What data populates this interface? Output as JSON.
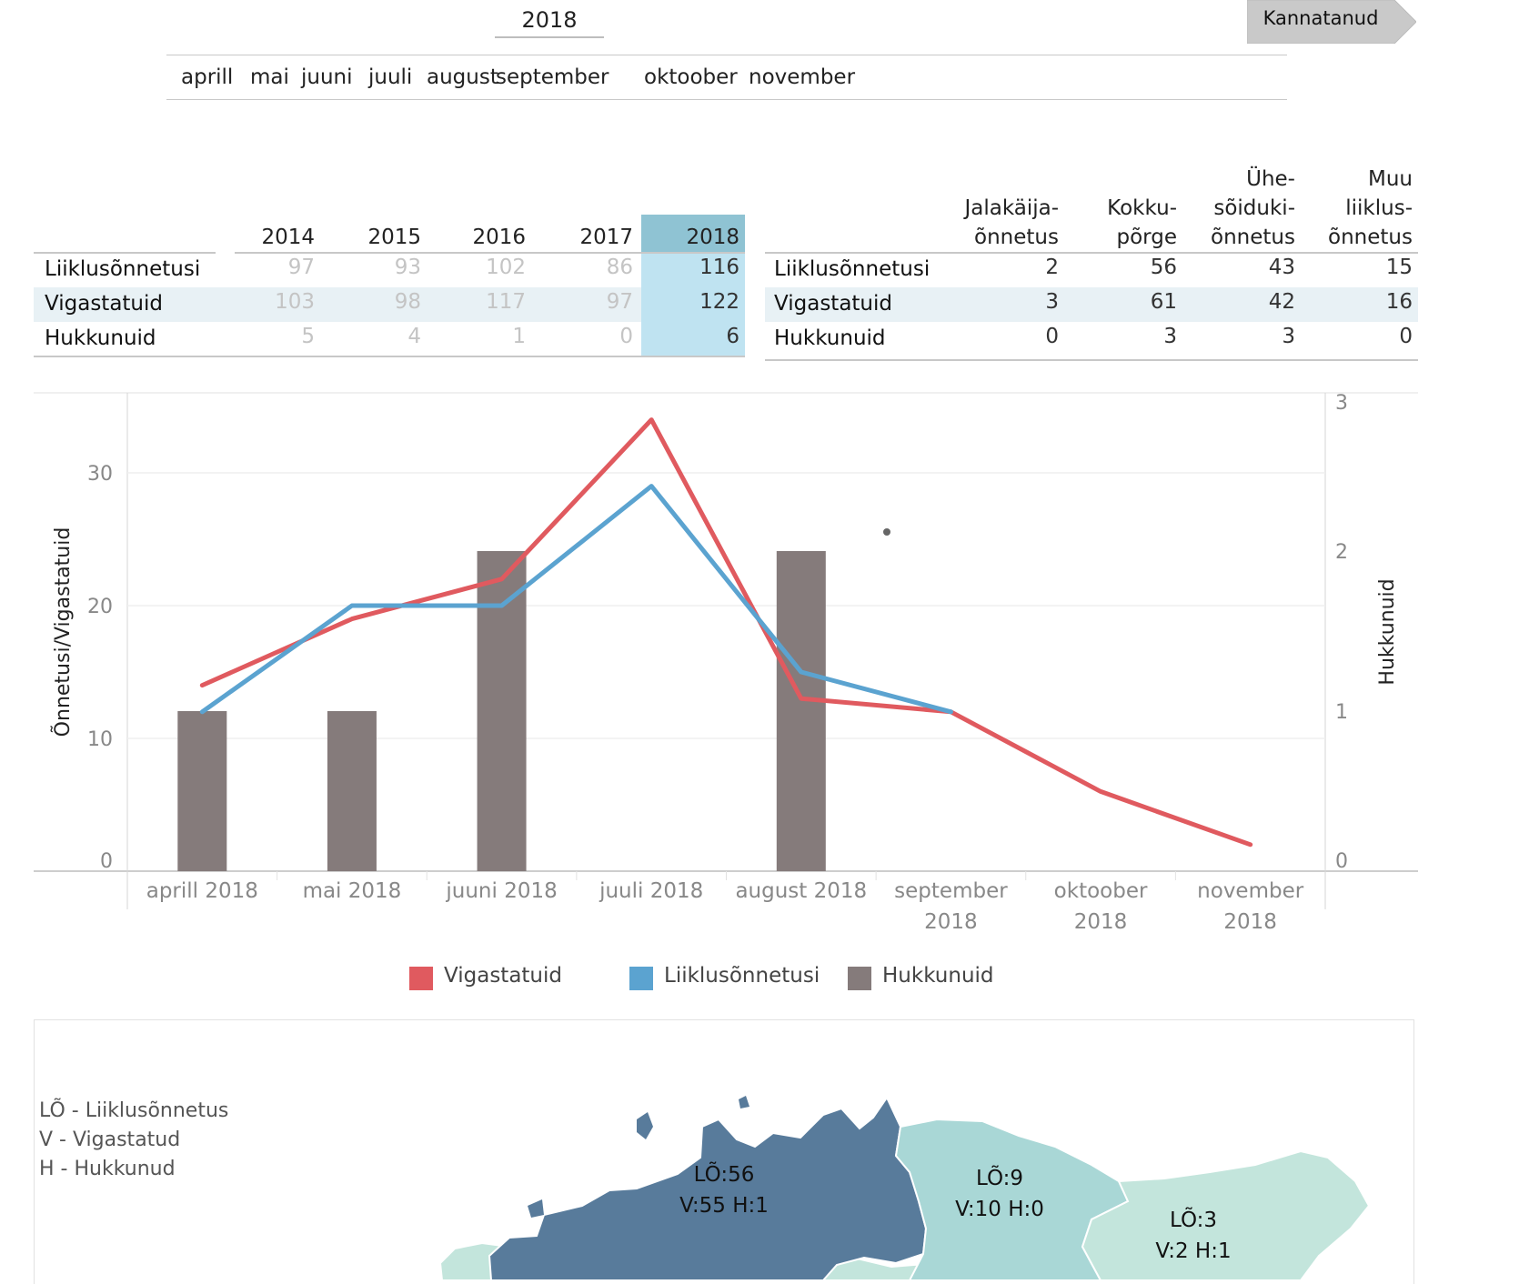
{
  "header": {
    "year": "2018",
    "kannatanud_button": "Kannatanud",
    "months": [
      "aprill",
      "mai",
      "juuni",
      "juuli",
      "august",
      "september",
      "oktoober",
      "november"
    ]
  },
  "year_table": {
    "columns": [
      "2014",
      "2015",
      "2016",
      "2017",
      "2018"
    ],
    "highlight_column": "2018",
    "rows": [
      {
        "label": "Liiklusõnnetusi",
        "values": [
          "97",
          "93",
          "102",
          "86",
          "116"
        ]
      },
      {
        "label": "Vigastatuid",
        "values": [
          "103",
          "98",
          "117",
          "97",
          "122"
        ]
      },
      {
        "label": "Hukkunuid",
        "values": [
          "5",
          "4",
          "1",
          "0",
          "6"
        ]
      }
    ]
  },
  "type_table": {
    "columns": [
      [
        "Jalakäija-",
        "õnnetus"
      ],
      [
        "Kokku-",
        "põrge"
      ],
      [
        "Ühe-",
        "sõiduki-",
        "õnnetus"
      ],
      [
        "Muu",
        "liiklus-",
        "õnnetus"
      ]
    ],
    "rows": [
      {
        "label": "Liiklusõnnetusi",
        "values": [
          "2",
          "56",
          "43",
          "15"
        ]
      },
      {
        "label": "Vigastatuid",
        "values": [
          "3",
          "61",
          "42",
          "16"
        ]
      },
      {
        "label": "Hukkunuid",
        "values": [
          "0",
          "3",
          "3",
          "0"
        ]
      }
    ]
  },
  "chart_data": {
    "type": "line",
    "categories": [
      [
        "aprill 2018"
      ],
      [
        "mai 2018"
      ],
      [
        "juuni 2018"
      ],
      [
        "juuli 2018"
      ],
      [
        "august 2018"
      ],
      [
        "september",
        "2018"
      ],
      [
        "oktoober",
        "2018"
      ],
      [
        "november",
        "2018"
      ]
    ],
    "series": [
      {
        "name": "Vigastatuid",
        "type": "line",
        "axis": "left",
        "color": "#e05a5f",
        "values": [
          14,
          19,
          22,
          34,
          13,
          12,
          6,
          2
        ]
      },
      {
        "name": "Liiklusõnnetusi",
        "type": "line",
        "axis": "left",
        "color": "#5ba3d0",
        "values": [
          12,
          20,
          20,
          29,
          15,
          12,
          null,
          null
        ]
      },
      {
        "name": "Hukkunuid",
        "type": "bar",
        "axis": "right",
        "color": "#857b7b",
        "values": [
          1,
          1,
          2,
          0,
          2,
          0,
          0,
          0
        ]
      }
    ],
    "ylabel": "Õnnetusi/Vigastatuid",
    "y2label": "Hukkunuid",
    "ylim": [
      0,
      36
    ],
    "y2lim": [
      0,
      3
    ],
    "yticks": [
      "0",
      "10",
      "20",
      "30"
    ],
    "y2ticks": [
      "0",
      "1",
      "2",
      "3"
    ],
    "grid": true,
    "legend": {
      "position": "bottom",
      "items": [
        "Vigastatuid",
        "Liiklusõnnetusi",
        "Hukkunuid"
      ]
    }
  },
  "map": {
    "legend": [
      "LÕ - Liiklusõnnetus",
      "V - Vigastatud",
      "H - Hukkunud"
    ],
    "regions": [
      {
        "line1": "LÕ:56",
        "line2": "V:55 H:1",
        "color": "#587b9b"
      },
      {
        "line1": "LÕ:9",
        "line2": "V:10 H:0",
        "color": "#a9d7d6"
      },
      {
        "line1": "LÕ:3",
        "line2": "V:2 H:1",
        "color": "#c3e5dc"
      }
    ]
  }
}
